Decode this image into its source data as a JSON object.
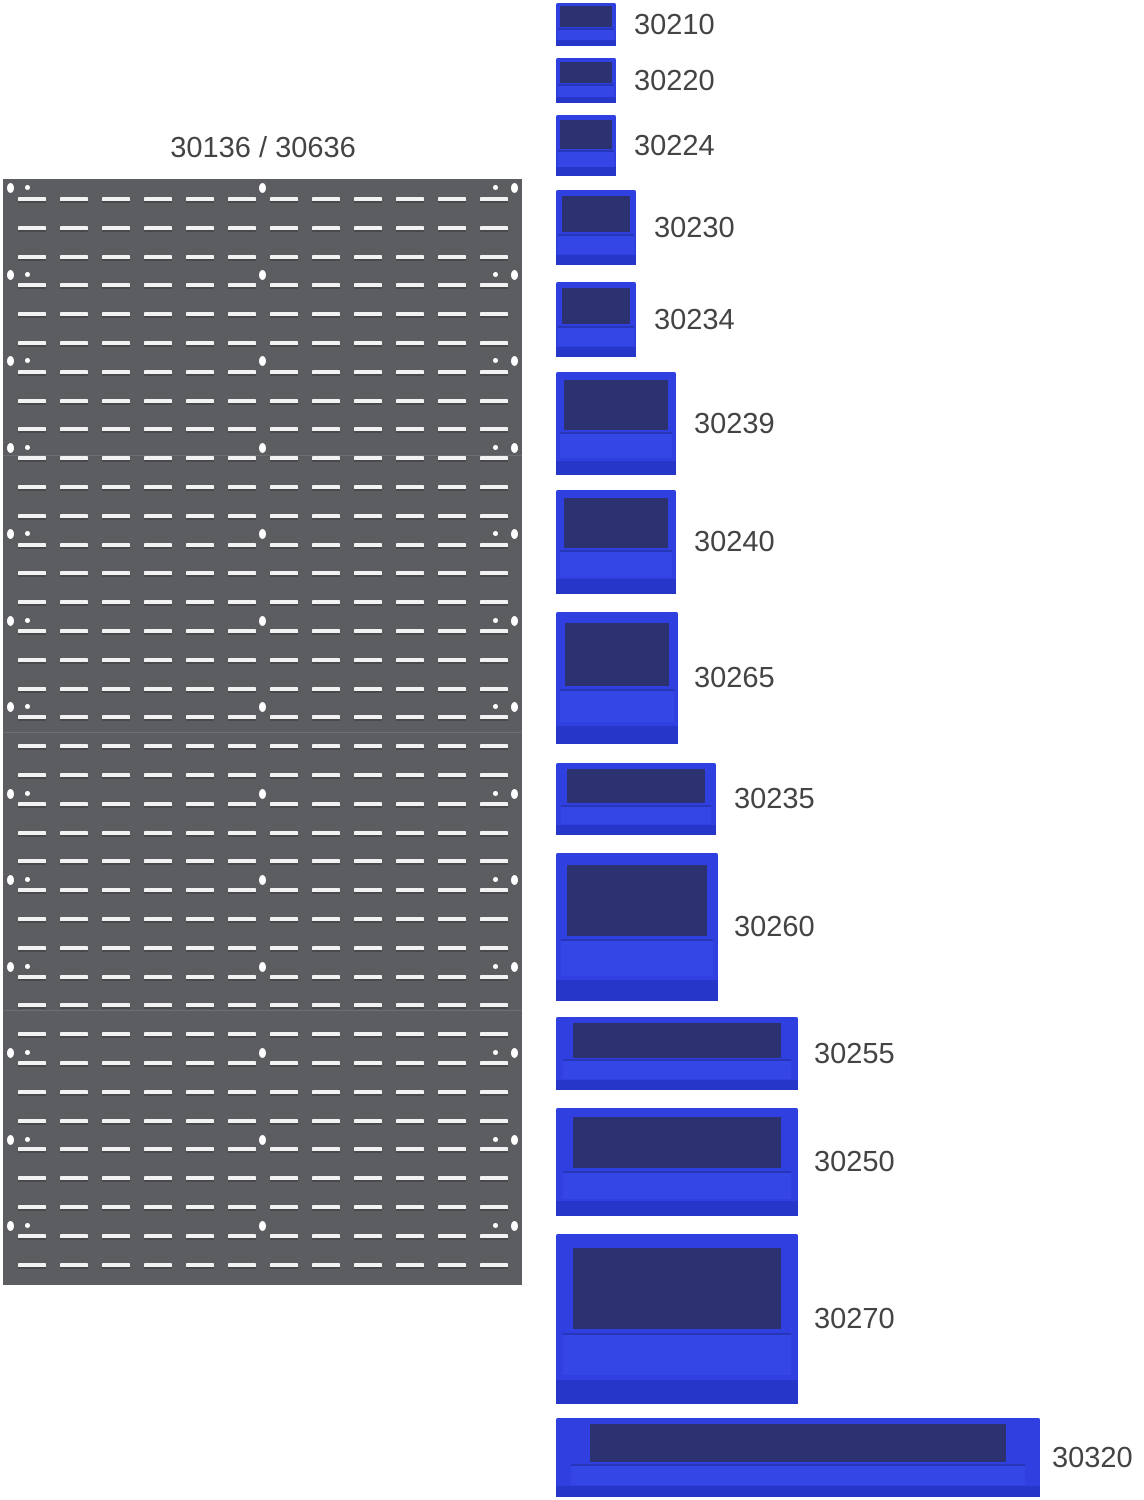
{
  "panel": {
    "label": "30136 / 30636",
    "color": "#5b5d60"
  },
  "bins": [
    {
      "model": "30210"
    },
    {
      "model": "30220"
    },
    {
      "model": "30224"
    },
    {
      "model": "30230"
    },
    {
      "model": "30234"
    },
    {
      "model": "30239"
    },
    {
      "model": "30240"
    },
    {
      "model": "30265"
    },
    {
      "model": "30235"
    },
    {
      "model": "30260"
    },
    {
      "model": "30255"
    },
    {
      "model": "30250"
    },
    {
      "model": "30270"
    },
    {
      "model": "30320"
    }
  ],
  "colors": {
    "bin": "#2f3fe0",
    "bin_interior": "#2c3270",
    "label": "#444444"
  }
}
